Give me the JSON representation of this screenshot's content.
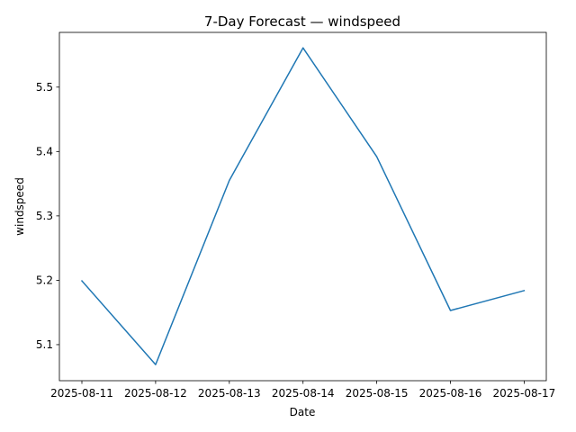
{
  "chart_data": {
    "type": "line",
    "title": "7-Day Forecast — windspeed",
    "xlabel": "Date",
    "ylabel": "windspeed",
    "x": [
      "2025-08-11",
      "2025-08-12",
      "2025-08-13",
      "2025-08-14",
      "2025-08-15",
      "2025-08-16",
      "2025-08-17"
    ],
    "series": [
      {
        "values": [
          5.199,
          5.069,
          5.355,
          5.561,
          5.392,
          5.153,
          5.184
        ],
        "color": "#1f77b4"
      }
    ],
    "yticks": [
      5.1,
      5.2,
      5.3,
      5.4,
      5.5
    ],
    "ylim": [
      5.044,
      5.585
    ],
    "grid": false,
    "legend": "none"
  }
}
